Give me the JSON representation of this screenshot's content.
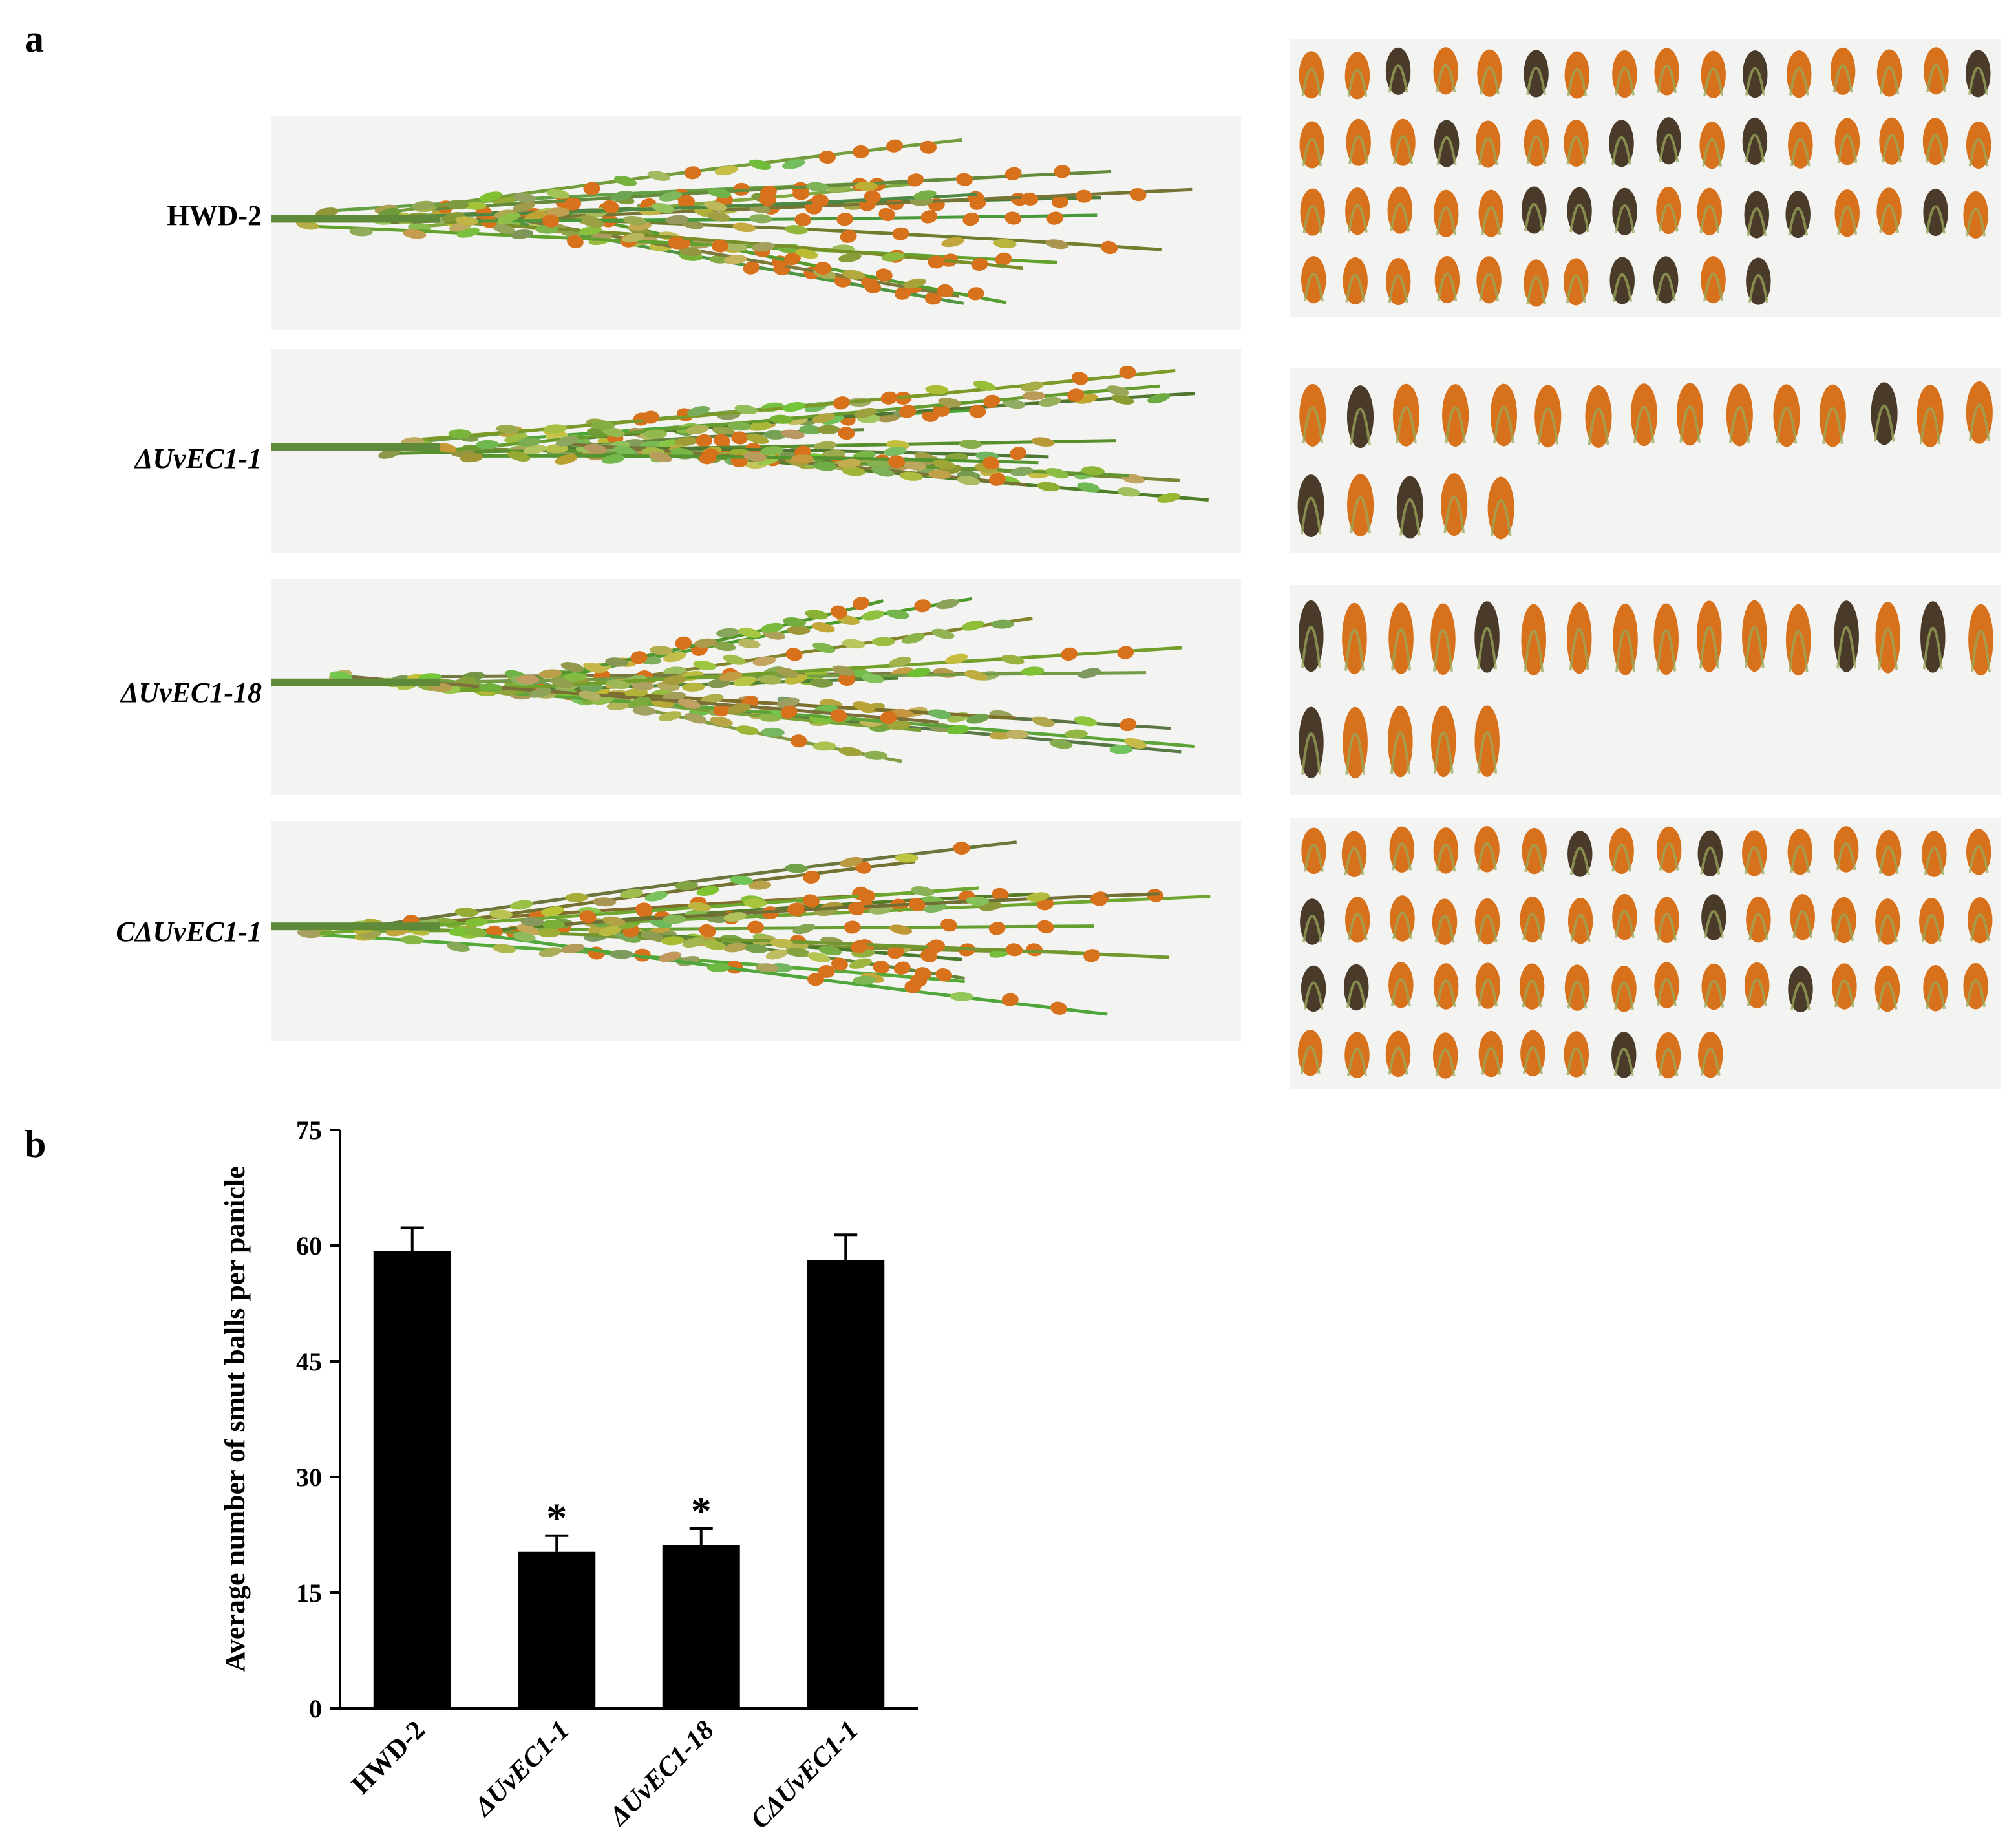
{
  "panel_a": {
    "letter": "a",
    "rows": [
      {
        "label": "HWD-2",
        "italic": false,
        "smut_ball_count": 59
      },
      {
        "label": "ΔUvEC1-1",
        "italic": true,
        "smut_ball_count": 20
      },
      {
        "label": "ΔUvEC1-18",
        "italic": true,
        "smut_ball_count": 21
      },
      {
        "label": "CΔUvEC1-1",
        "italic": true,
        "smut_ball_count": 58
      }
    ],
    "colors": {
      "panicle_green": "#5f8a3a",
      "smut_orange": "#d8711c",
      "smut_dark": "#4a3a2a",
      "photo_bg": "#f3f3f1"
    }
  },
  "panel_b": {
    "letter": "b"
  },
  "chart_data": {
    "type": "bar",
    "categories": [
      "HWD-2",
      "ΔUvEC1-1",
      "ΔUvEC1-18",
      "CΔUvEC1-1"
    ],
    "values": [
      59.3,
      20.3,
      21.2,
      58.1
    ],
    "errors": [
      3.0,
      2.1,
      2.1,
      3.3
    ],
    "significance": [
      "",
      "*",
      "*",
      ""
    ],
    "title": "",
    "xlabel": "",
    "ylabel": "Average number of smut balls per panicle",
    "ylim": [
      0,
      75
    ],
    "yticks": [
      0,
      15,
      30,
      45,
      60,
      75
    ],
    "grid": false,
    "legend": "none",
    "bar_color": "#000000"
  }
}
